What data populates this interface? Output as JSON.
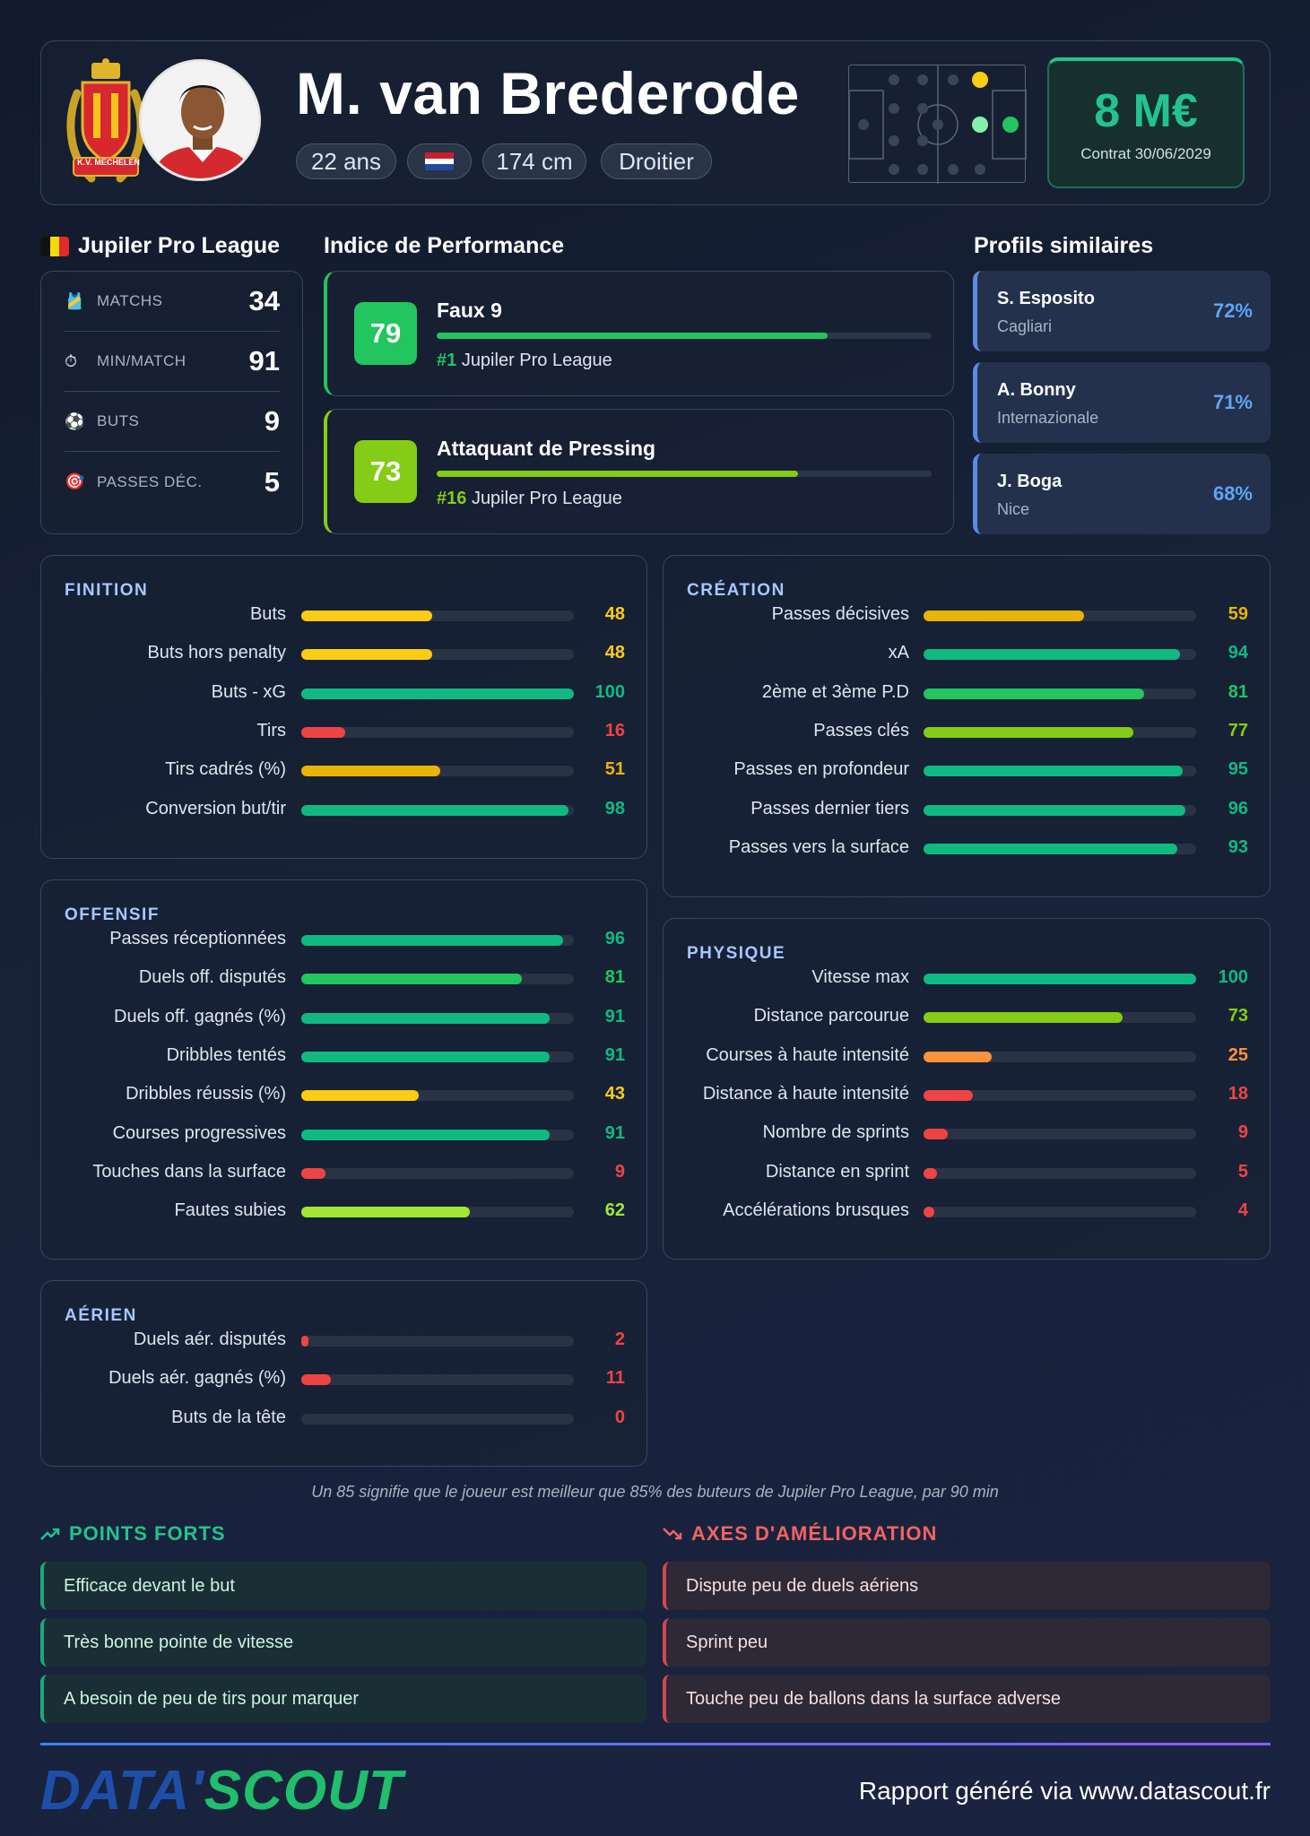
{
  "player": {
    "name": "M. van Brederode",
    "age": "22 ans",
    "height": "174 cm",
    "foot": "Droitier",
    "value": "8 M€",
    "contract": "Contrat 30/06/2029",
    "club_logo_text": "K.V. MECHELEN",
    "nationality_flag": "netherlands-flag"
  },
  "league": {
    "title": "Jupiler Pro League",
    "flag": "belgium-flag",
    "stats": [
      {
        "label": "MATCHS",
        "value": "34",
        "icon": "jersey-icon"
      },
      {
        "label": "MIN/MATCH",
        "value": "91",
        "icon": "stopwatch-icon"
      },
      {
        "label": "BUTS",
        "value": "9",
        "icon": "soccer-ball-icon"
      },
      {
        "label": "PASSES DÉC.",
        "value": "5",
        "icon": "target-icon"
      }
    ]
  },
  "performance": {
    "title": "Indice de Performance",
    "cards": [
      {
        "score": "79",
        "role": "Faux 9",
        "rank": "#1",
        "league": "Jupiler Pro League",
        "fill": 79,
        "color": "#22c55e"
      },
      {
        "score": "73",
        "role": "Attaquant de Pressing",
        "rank": "#16",
        "league": "Jupiler Pro League",
        "fill": 73,
        "color": "#84cc16"
      }
    ]
  },
  "similar": {
    "title": "Profils similaires",
    "profiles": [
      {
        "name": "S. Esposito",
        "club": "Cagliari",
        "pct": "72%"
      },
      {
        "name": "A. Bonny",
        "club": "Internazionale",
        "pct": "71%"
      },
      {
        "name": "J. Boga",
        "club": "Nice",
        "pct": "68%"
      }
    ]
  },
  "panels": {
    "finition": {
      "title": "FINITION",
      "rows": [
        {
          "label": "Buts",
          "value": 48,
          "color": "#facc15"
        },
        {
          "label": "Buts hors penalty",
          "value": 48,
          "color": "#facc15"
        },
        {
          "label": "Buts - xG",
          "value": 100,
          "color": "#10b981"
        },
        {
          "label": "Tirs",
          "value": 16,
          "color": "#ef4444"
        },
        {
          "label": "Tirs cadrés (%)",
          "value": 51,
          "color": "#eab308"
        },
        {
          "label": "Conversion but/tir",
          "value": 98,
          "color": "#10b981"
        }
      ]
    },
    "creation": {
      "title": "CRÉATION",
      "rows": [
        {
          "label": "Passes décisives",
          "value": 59,
          "color": "#eab308"
        },
        {
          "label": "xA",
          "value": 94,
          "color": "#10b981"
        },
        {
          "label": "2ème et 3ème P.D",
          "value": 81,
          "color": "#22c55e"
        },
        {
          "label": "Passes clés",
          "value": 77,
          "color": "#84cc16"
        },
        {
          "label": "Passes en profondeur",
          "value": 95,
          "color": "#10b981"
        },
        {
          "label": "Passes dernier tiers",
          "value": 96,
          "color": "#10b981"
        },
        {
          "label": "Passes vers la surface",
          "value": 93,
          "color": "#10b981"
        }
      ]
    },
    "offensif": {
      "title": "OFFENSIF",
      "rows": [
        {
          "label": "Passes réceptionnées",
          "value": 96,
          "color": "#10b981"
        },
        {
          "label": "Duels off. disputés",
          "value": 81,
          "color": "#22c55e"
        },
        {
          "label": "Duels off. gagnés (%)",
          "value": 91,
          "color": "#10b981"
        },
        {
          "label": "Dribbles tentés",
          "value": 91,
          "color": "#10b981"
        },
        {
          "label": "Dribbles réussis (%)",
          "value": 43,
          "color": "#facc15"
        },
        {
          "label": "Courses progressives",
          "value": 91,
          "color": "#10b981"
        },
        {
          "label": "Touches dans la surface",
          "value": 9,
          "color": "#ef4444"
        },
        {
          "label": "Fautes subies",
          "value": 62,
          "color": "#a3e635"
        }
      ]
    },
    "physique": {
      "title": "PHYSIQUE",
      "rows": [
        {
          "label": "Vitesse max",
          "value": 100,
          "color": "#10b981"
        },
        {
          "label": "Distance parcourue",
          "value": 73,
          "color": "#84cc16"
        },
        {
          "label": "Courses à haute intensité",
          "value": 25,
          "color": "#fb923c"
        },
        {
          "label": "Distance à haute intensité",
          "value": 18,
          "color": "#ef4444"
        },
        {
          "label": "Nombre de sprints",
          "value": 9,
          "color": "#ef4444"
        },
        {
          "label": "Distance en sprint",
          "value": 5,
          "color": "#ef4444"
        },
        {
          "label": "Accélérations brusques",
          "value": 4,
          "color": "#ef4444"
        }
      ]
    },
    "aerien": {
      "title": "AÉRIEN",
      "rows": [
        {
          "label": "Duels aér. disputés",
          "value": 2,
          "color": "#ef4444"
        },
        {
          "label": "Duels aér. gagnés (%)",
          "value": 11,
          "color": "#ef4444"
        },
        {
          "label": "Buts de la tête",
          "value": 0,
          "color": "#ef4444"
        }
      ]
    }
  },
  "footnote": "Un 85 signifie que le joueur est meilleur que 85% des buteurs de Jupiler Pro League, par 90 min",
  "strengths": {
    "title": "POINTS FORTS",
    "items": [
      "Efficace devant le but",
      "Très bonne pointe de vitesse",
      "A besoin de peu de tirs pour marquer"
    ]
  },
  "weaknesses": {
    "title": "AXES D'AMÉLIORATION",
    "items": [
      "Dispute peu de duels aériens",
      "Sprint peu",
      "Touche peu de ballons dans la surface adverse"
    ]
  },
  "footer": {
    "brand_left": "DATA'",
    "brand_right": "SCOUT",
    "text": "Rapport généré via www.datascout.fr"
  },
  "colors": {
    "accent_green": "#22c38e",
    "accent_blue": "#5fa5f5",
    "bad_red": "#ef4444"
  }
}
